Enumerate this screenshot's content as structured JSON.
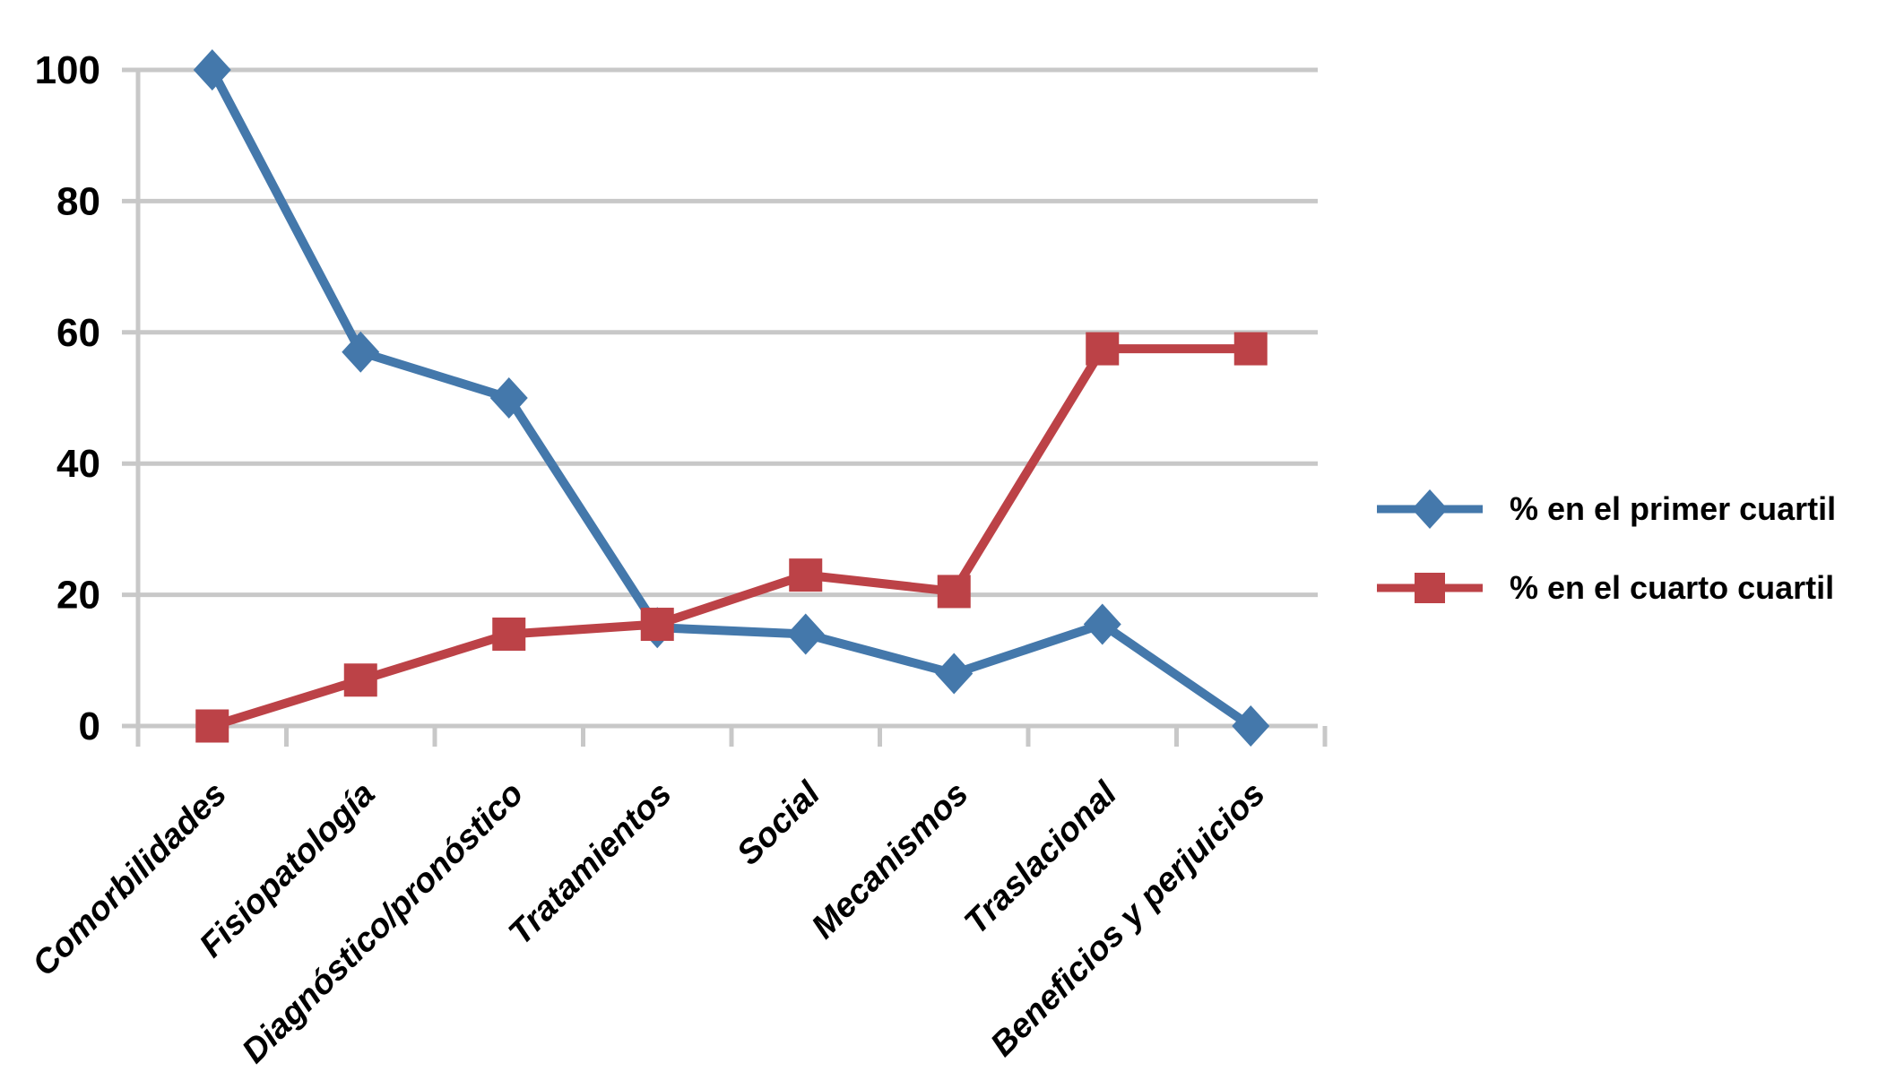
{
  "chart_data": {
    "type": "line",
    "title": "",
    "xlabel": "",
    "ylabel": "",
    "categories": [
      "Comorbilidades",
      "Fisiopatología",
      "Diagnóstico/pronóstico",
      "Tratamientos",
      "Social",
      "Mecanismos",
      "Traslacional",
      "Beneficios y perjuicios"
    ],
    "series": [
      {
        "name": "% en el primer cuartil",
        "marker": "diamond",
        "color": "#4478AB",
        "values": [
          100,
          57,
          50,
          15,
          14,
          8,
          15.5,
          0
        ]
      },
      {
        "name": "% en el cuarto cuartil",
        "marker": "square",
        "color": "#BC4247",
        "values": [
          0,
          7,
          14,
          15.5,
          23,
          20.5,
          57.5,
          57.5
        ]
      }
    ],
    "ylim": [
      0,
      100
    ],
    "yticks": [
      0,
      20,
      40,
      60,
      80,
      100
    ],
    "grid": "horizontal",
    "gridline_color": "#C8C8C8",
    "axis_color": "#C8C8C8",
    "text_color": "#000000",
    "background": "#FFFFFF",
    "legend_position": "right-middle"
  }
}
